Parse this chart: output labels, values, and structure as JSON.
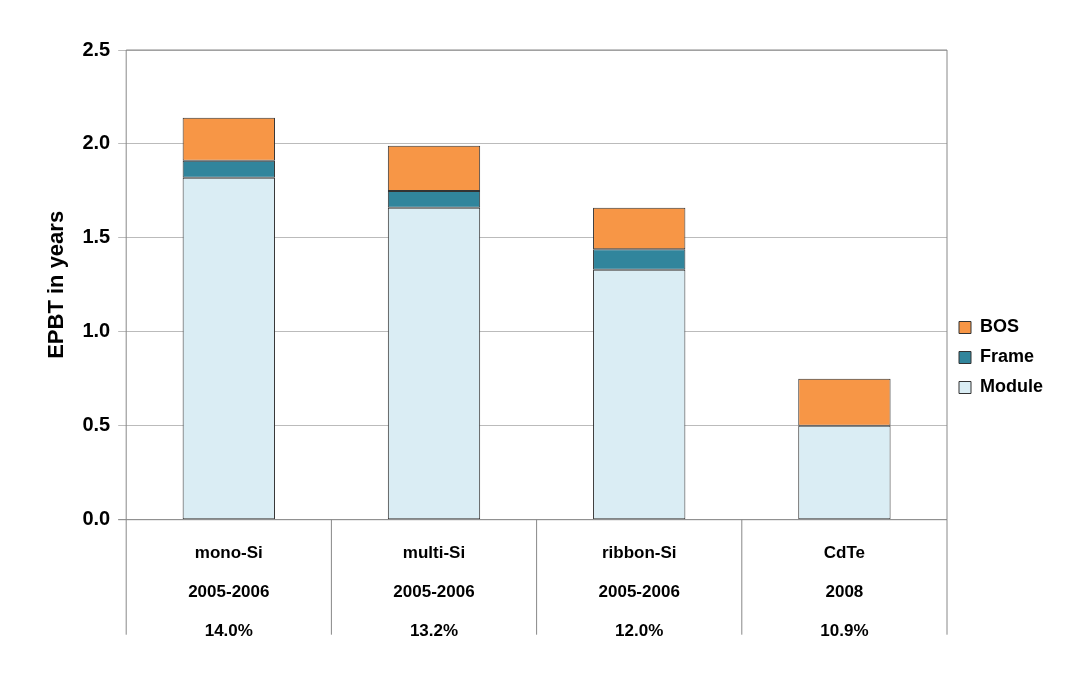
{
  "chart_data": {
    "type": "bar",
    "stacked": true,
    "ylabel": "EPBT in years",
    "categories": [
      "mono-Si\n2005-2006\n14.0%",
      "multi-Si\n2005-2006\n13.2%",
      "ribbon-Si\n2005-2006\n12.0%",
      "CdTe\n2008\n10.9%"
    ],
    "series": [
      {
        "name": "Module",
        "color": "#daedf4",
        "values": [
          1.82,
          1.66,
          1.33,
          0.5
        ]
      },
      {
        "name": "Frame",
        "color": "#31859c",
        "values": [
          0.09,
          0.09,
          0.11,
          0
        ]
      },
      {
        "name": "BOS",
        "color": "#f79646",
        "values": [
          0.23,
          0.24,
          0.22,
          0.25
        ]
      }
    ],
    "ylim": [
      0,
      2.5
    ],
    "yticks": [
      {
        "value": 0,
        "label": "0.0"
      },
      {
        "value": 0.5,
        "label": "0.5"
      },
      {
        "value": 1,
        "label": "1.0"
      },
      {
        "value": 1.5,
        "label": "1.5"
      },
      {
        "value": 2,
        "label": "2.0"
      },
      {
        "value": 2.5,
        "label": "2.5"
      }
    ],
    "grid": "y",
    "legend": "right"
  }
}
